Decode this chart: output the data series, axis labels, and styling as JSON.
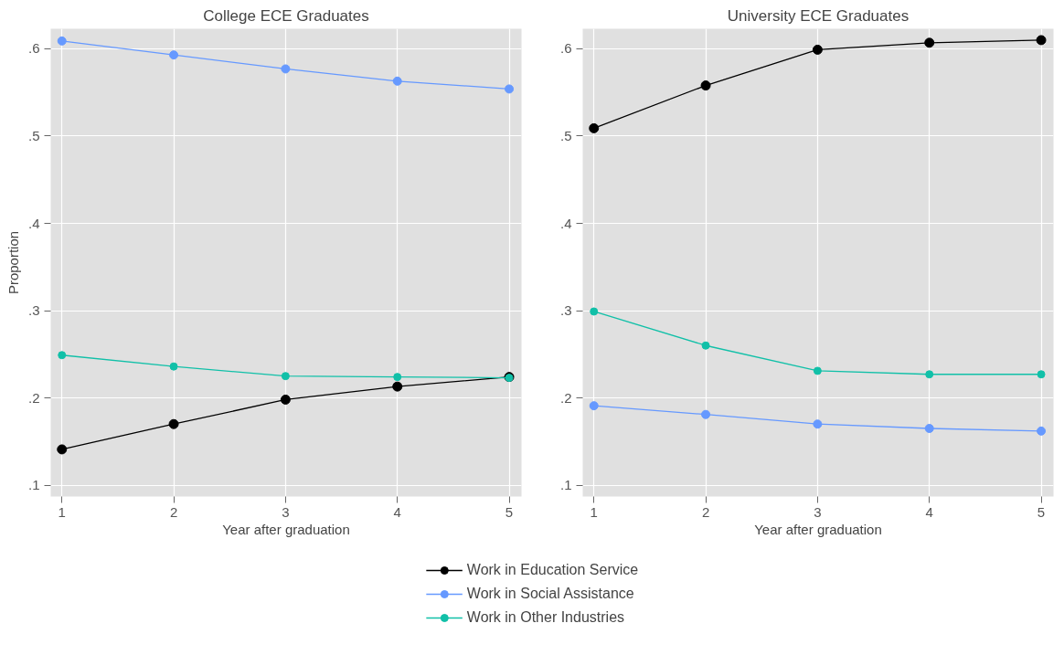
{
  "chart_data": [
    {
      "type": "line",
      "title": "College ECE Graduates",
      "xlabel": "Year after graduation",
      "ylabel": "Proportion",
      "x": [
        1,
        2,
        3,
        4,
        5
      ],
      "xlim": [
        0.9,
        5.11
      ],
      "ylim": [
        0.087,
        0.623
      ],
      "xticks": [
        1,
        2,
        3,
        4,
        5
      ],
      "yticks": [
        {
          "value": 0.1,
          "label": ".1"
        },
        {
          "value": 0.2,
          "label": ".2"
        },
        {
          "value": 0.3,
          "label": ".3"
        },
        {
          "value": 0.4,
          "label": ".4"
        },
        {
          "value": 0.5,
          "label": ".5"
        },
        {
          "value": 0.6,
          "label": ".6"
        }
      ],
      "grid": true,
      "marker": "circle",
      "legend": "bottom",
      "series": [
        {
          "name": "Work in Education Service",
          "color": "#000000",
          "values": [
            0.141,
            0.17,
            0.198,
            0.213,
            0.224
          ]
        },
        {
          "name": "Work in Social Assistance",
          "color": "#6699ff",
          "values": [
            0.609,
            0.593,
            0.577,
            0.563,
            0.554
          ]
        },
        {
          "name": "Work in Other Industries",
          "color": "#11c0a8",
          "values": [
            0.249,
            0.236,
            0.225,
            0.224,
            0.223
          ]
        }
      ]
    },
    {
      "type": "line",
      "title": "University ECE Graduates",
      "xlabel": "Year after graduation",
      "x": [
        1,
        2,
        3,
        4,
        5
      ],
      "xlim": [
        0.9,
        5.11
      ],
      "ylim": [
        0.087,
        0.623
      ],
      "xticks": [
        1,
        2,
        3,
        4,
        5
      ],
      "yticks": [
        {
          "value": 0.1,
          "label": ".1"
        },
        {
          "value": 0.2,
          "label": ".2"
        },
        {
          "value": 0.3,
          "label": ".3"
        },
        {
          "value": 0.4,
          "label": ".4"
        },
        {
          "value": 0.5,
          "label": ".5"
        },
        {
          "value": 0.6,
          "label": ".6"
        }
      ],
      "grid": true,
      "marker": "circle",
      "series": [
        {
          "color": "#000000",
          "values": [
            0.509,
            0.558,
            0.599,
            0.607,
            0.61
          ]
        },
        {
          "color": "#6699ff",
          "values": [
            0.191,
            0.181,
            0.17,
            0.165,
            0.162
          ]
        },
        {
          "color": "#11c0a8",
          "values": [
            0.299,
            0.26,
            0.231,
            0.227,
            0.227
          ]
        }
      ]
    }
  ]
}
